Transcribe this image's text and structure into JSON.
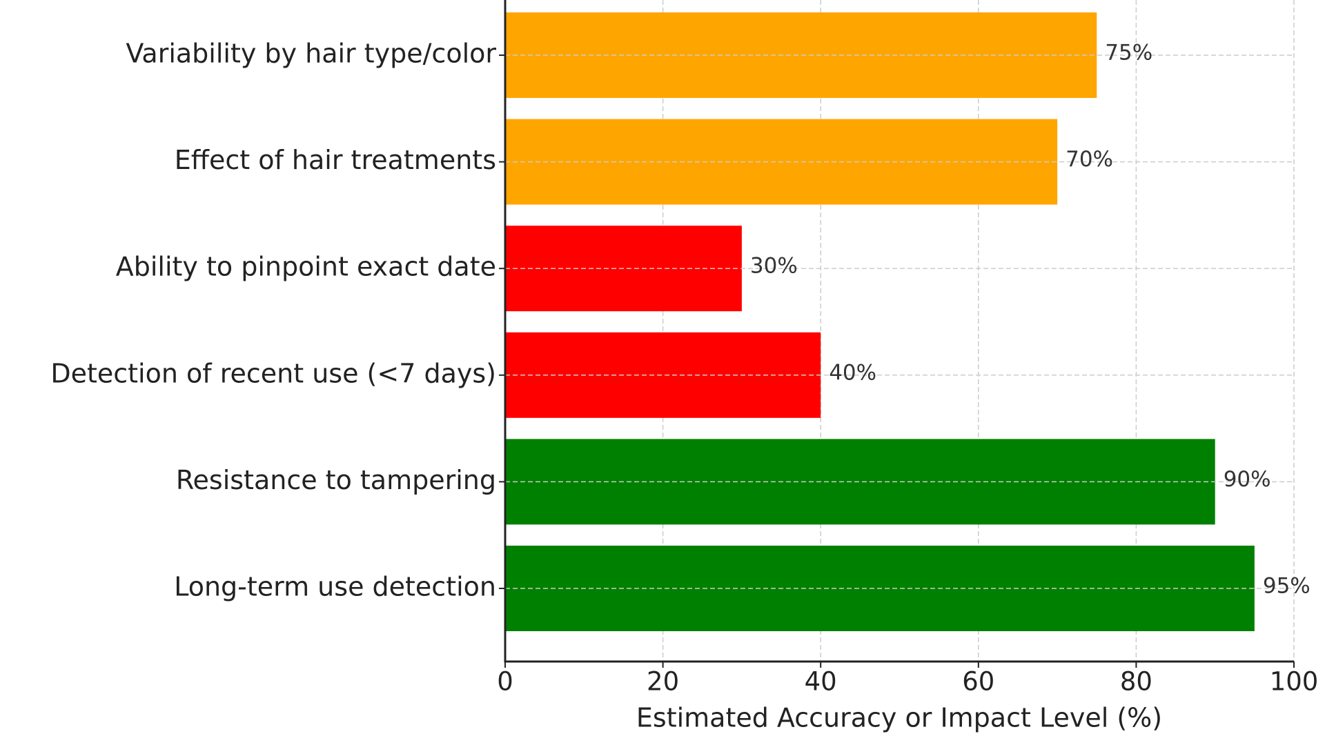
{
  "chart_data": {
    "type": "barh",
    "xlabel": "Estimated Accuracy or Impact Level (%)",
    "categories": [
      "Variability by hair type/color",
      "Effect of hair treatments",
      "Ability to pinpoint exact date",
      "Detection of recent use (<7 days)",
      "Resistance to tampering",
      "Long-term use detection"
    ],
    "values": [
      75,
      70,
      30,
      40,
      90,
      95
    ],
    "value_labels": [
      "75%",
      "70%",
      "30%",
      "40%",
      "90%",
      "95%"
    ],
    "colors": [
      "#ffa500",
      "#ffa500",
      "#ff0000",
      "#ff0000",
      "#008000",
      "#008000"
    ],
    "xlim": [
      0,
      100
    ],
    "xticks": [
      0,
      20,
      40,
      60,
      80,
      100
    ],
    "grid": true
  }
}
